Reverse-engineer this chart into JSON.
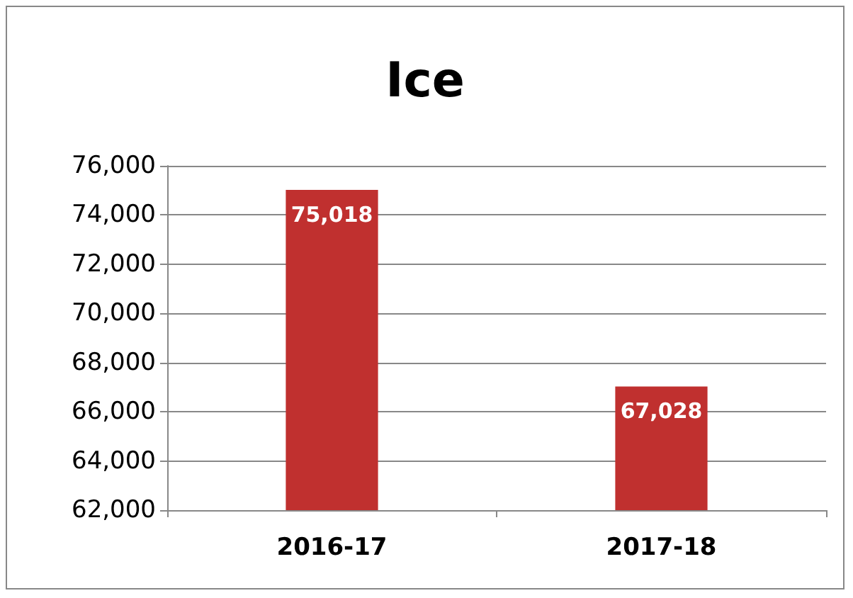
{
  "chart_data": {
    "type": "bar",
    "title": "Ice",
    "categories": [
      "2016-17",
      "2017-18"
    ],
    "values": [
      75018,
      67028
    ],
    "value_labels": [
      "75,018",
      "67,028"
    ],
    "color": "#c0302f",
    "ylim": [
      62000,
      76000
    ],
    "yticks": [
      {
        "value": 62000,
        "label": "62,000"
      },
      {
        "value": 64000,
        "label": "64,000"
      },
      {
        "value": 66000,
        "label": "66,000"
      },
      {
        "value": 68000,
        "label": "68,000"
      },
      {
        "value": 70000,
        "label": "70,000"
      },
      {
        "value": 72000,
        "label": "72,000"
      },
      {
        "value": 74000,
        "label": "74,000"
      },
      {
        "value": 76000,
        "label": "76,000"
      }
    ],
    "grid": "y"
  }
}
